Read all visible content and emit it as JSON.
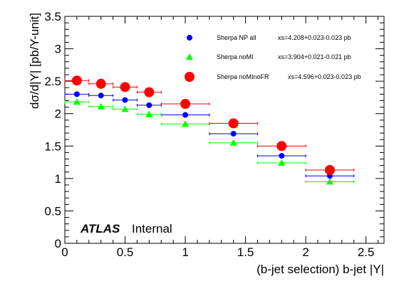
{
  "chart_data": {
    "type": "scatter",
    "xlabel": "(b-jet selection) b-jet |Y|",
    "ylabel": "dσ/d|Y| [pb/Y-unit]",
    "xlim": [
      0,
      2.65
    ],
    "ylim": [
      0,
      3.5
    ],
    "x_ticks": [
      "0",
      "0.5",
      "1",
      "1.5",
      "2",
      "2.5"
    ],
    "y_ticks": [
      "0",
      "0.5",
      "1",
      "1.5",
      "2",
      "2.5",
      "3",
      "3.5"
    ],
    "grid": false,
    "legend_position": "top-right",
    "atlas_label": "ATLAS",
    "atlas_sublabel": "Internal",
    "series": [
      {
        "name": "Sherpa NP all",
        "xs_label": "xs=4.208+0.023-0.023 pb",
        "color": "#0000ff",
        "marker": "circle-small",
        "x": [
          0.1,
          0.3,
          0.5,
          0.7,
          1.0,
          1.4,
          1.8,
          2.2
        ],
        "x_err": [
          0.1,
          0.1,
          0.1,
          0.1,
          0.2,
          0.2,
          0.2,
          0.2
        ],
        "y": [
          2.3,
          2.28,
          2.21,
          2.13,
          1.98,
          1.69,
          1.35,
          1.04
        ]
      },
      {
        "name": "Sherpa noMI",
        "xs_label": "xs=3.904+0.021-0.021 pb",
        "color": "#00ff00",
        "marker": "triangle",
        "x": [
          0.1,
          0.3,
          0.5,
          0.7,
          1.0,
          1.4,
          1.8,
          2.2
        ],
        "x_err": [
          0.1,
          0.1,
          0.1,
          0.1,
          0.2,
          0.2,
          0.2,
          0.2
        ],
        "y": [
          2.18,
          2.11,
          2.07,
          1.99,
          1.84,
          1.55,
          1.24,
          0.95
        ]
      },
      {
        "name": "Sherpa noMInoFR",
        "xs_label": "xs=4.596+0.023-0.023 pb",
        "color": "#ff0000",
        "marker": "circle-large",
        "x": [
          0.1,
          0.3,
          0.5,
          0.7,
          1.0,
          1.4,
          1.8,
          2.2
        ],
        "x_err": [
          0.1,
          0.1,
          0.1,
          0.1,
          0.2,
          0.2,
          0.2,
          0.2
        ],
        "y": [
          2.51,
          2.46,
          2.41,
          2.33,
          2.15,
          1.85,
          1.5,
          1.13
        ]
      }
    ]
  }
}
